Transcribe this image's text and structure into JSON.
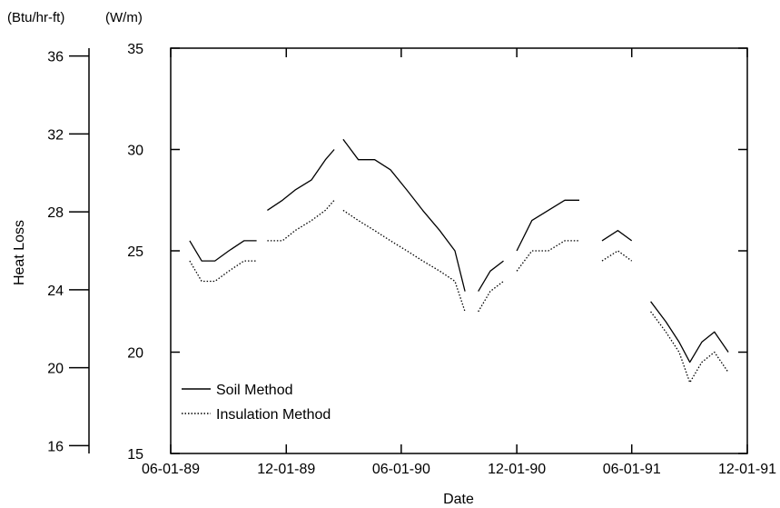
{
  "chart_data": {
    "type": "line",
    "title": "",
    "xlabel": "Date",
    "ylabel": "Heat Loss",
    "y_unit_primary": "(W/m)",
    "y_unit_secondary": "(Btu/hr-ft)",
    "x_ticks": [
      "06-01-89",
      "12-01-89",
      "06-01-90",
      "12-01-90",
      "06-01-91",
      "12-01-91"
    ],
    "xlim": [
      "1989-06-01",
      "1991-12-01"
    ],
    "y_ticks": [
      15,
      20,
      25,
      30,
      35
    ],
    "ylim": [
      15,
      35
    ],
    "secondary_y_ticks": [
      16,
      20,
      24,
      28,
      32,
      36
    ],
    "secondary_ylim": [
      15.6,
      36.4
    ],
    "legend": {
      "position": "bottom-left",
      "entries": [
        "Soil Method",
        "Insulation Method"
      ]
    },
    "series": [
      {
        "name": "Soil Method",
        "style": "solid",
        "segments": [
          {
            "x": [
              "1989-07-01",
              "1989-07-20",
              "1989-08-10",
              "1989-09-01",
              "1989-09-25",
              "1989-10-15"
            ],
            "y": [
              25.5,
              24.5,
              24.5,
              25.0,
              25.5,
              25.5
            ]
          },
          {
            "x": [
              "1989-11-01",
              "1989-11-25",
              "1989-12-15",
              "1990-01-10",
              "1990-02-01",
              "1990-02-15"
            ],
            "y": [
              27.0,
              27.5,
              28.0,
              28.5,
              29.5,
              30.0
            ]
          },
          {
            "x": [
              "1990-03-01",
              "1990-03-25",
              "1990-04-20",
              "1990-05-15",
              "1990-06-10",
              "1990-07-05",
              "1990-08-01",
              "1990-08-25",
              "1990-09-10"
            ],
            "y": [
              30.5,
              29.5,
              29.5,
              29.0,
              28.0,
              27.0,
              26.0,
              25.0,
              23.0
            ]
          },
          {
            "x": [
              "1990-10-01",
              "1990-10-20",
              "1990-11-10"
            ],
            "y": [
              23.0,
              24.0,
              24.5
            ]
          },
          {
            "x": [
              "1990-12-01",
              "1990-12-25",
              "1991-01-20",
              "1991-02-15",
              "1991-03-10"
            ],
            "y": [
              25.0,
              26.5,
              27.0,
              27.5,
              27.5
            ]
          },
          {
            "x": [
              "1991-04-15",
              "1991-05-10",
              "1991-06-01"
            ],
            "y": [
              25.5,
              26.0,
              25.5
            ]
          },
          {
            "x": [
              "1991-07-01",
              "1991-07-25",
              "1991-08-15",
              "1991-09-01",
              "1991-09-20",
              "1991-10-10",
              "1991-11-01"
            ],
            "y": [
              22.5,
              21.5,
              20.5,
              19.5,
              20.5,
              21.0,
              20.0
            ]
          }
        ]
      },
      {
        "name": "Insulation Method",
        "style": "dotted",
        "segments": [
          {
            "x": [
              "1989-07-01",
              "1989-07-20",
              "1989-08-10",
              "1989-09-01",
              "1989-09-25",
              "1989-10-15"
            ],
            "y": [
              24.5,
              23.5,
              23.5,
              24.0,
              24.5,
              24.5
            ]
          },
          {
            "x": [
              "1989-11-01",
              "1989-11-25",
              "1989-12-15",
              "1990-01-10",
              "1990-02-01",
              "1990-02-15"
            ],
            "y": [
              25.5,
              25.5,
              26.0,
              26.5,
              27.0,
              27.5
            ]
          },
          {
            "x": [
              "1990-03-01",
              "1990-03-25",
              "1990-04-20",
              "1990-05-15",
              "1990-06-10",
              "1990-07-05",
              "1990-08-01",
              "1990-08-25",
              "1990-09-10"
            ],
            "y": [
              27.0,
              26.5,
              26.0,
              25.5,
              25.0,
              24.5,
              24.0,
              23.5,
              22.0
            ]
          },
          {
            "x": [
              "1990-10-01",
              "1990-10-20",
              "1990-11-10"
            ],
            "y": [
              22.0,
              23.0,
              23.5
            ]
          },
          {
            "x": [
              "1990-12-01",
              "1990-12-25",
              "1991-01-20",
              "1991-02-15",
              "1991-03-10"
            ],
            "y": [
              24.0,
              25.0,
              25.0,
              25.5,
              25.5
            ]
          },
          {
            "x": [
              "1991-04-15",
              "1991-05-10",
              "1991-06-01"
            ],
            "y": [
              24.5,
              25.0,
              24.5
            ]
          },
          {
            "x": [
              "1991-07-01",
              "1991-07-25",
              "1991-08-15",
              "1991-09-01",
              "1991-09-20",
              "1991-10-10",
              "1991-11-01"
            ],
            "y": [
              22.0,
              21.0,
              20.0,
              18.5,
              19.5,
              20.0,
              19.0
            ]
          }
        ]
      }
    ],
    "grid": false
  }
}
